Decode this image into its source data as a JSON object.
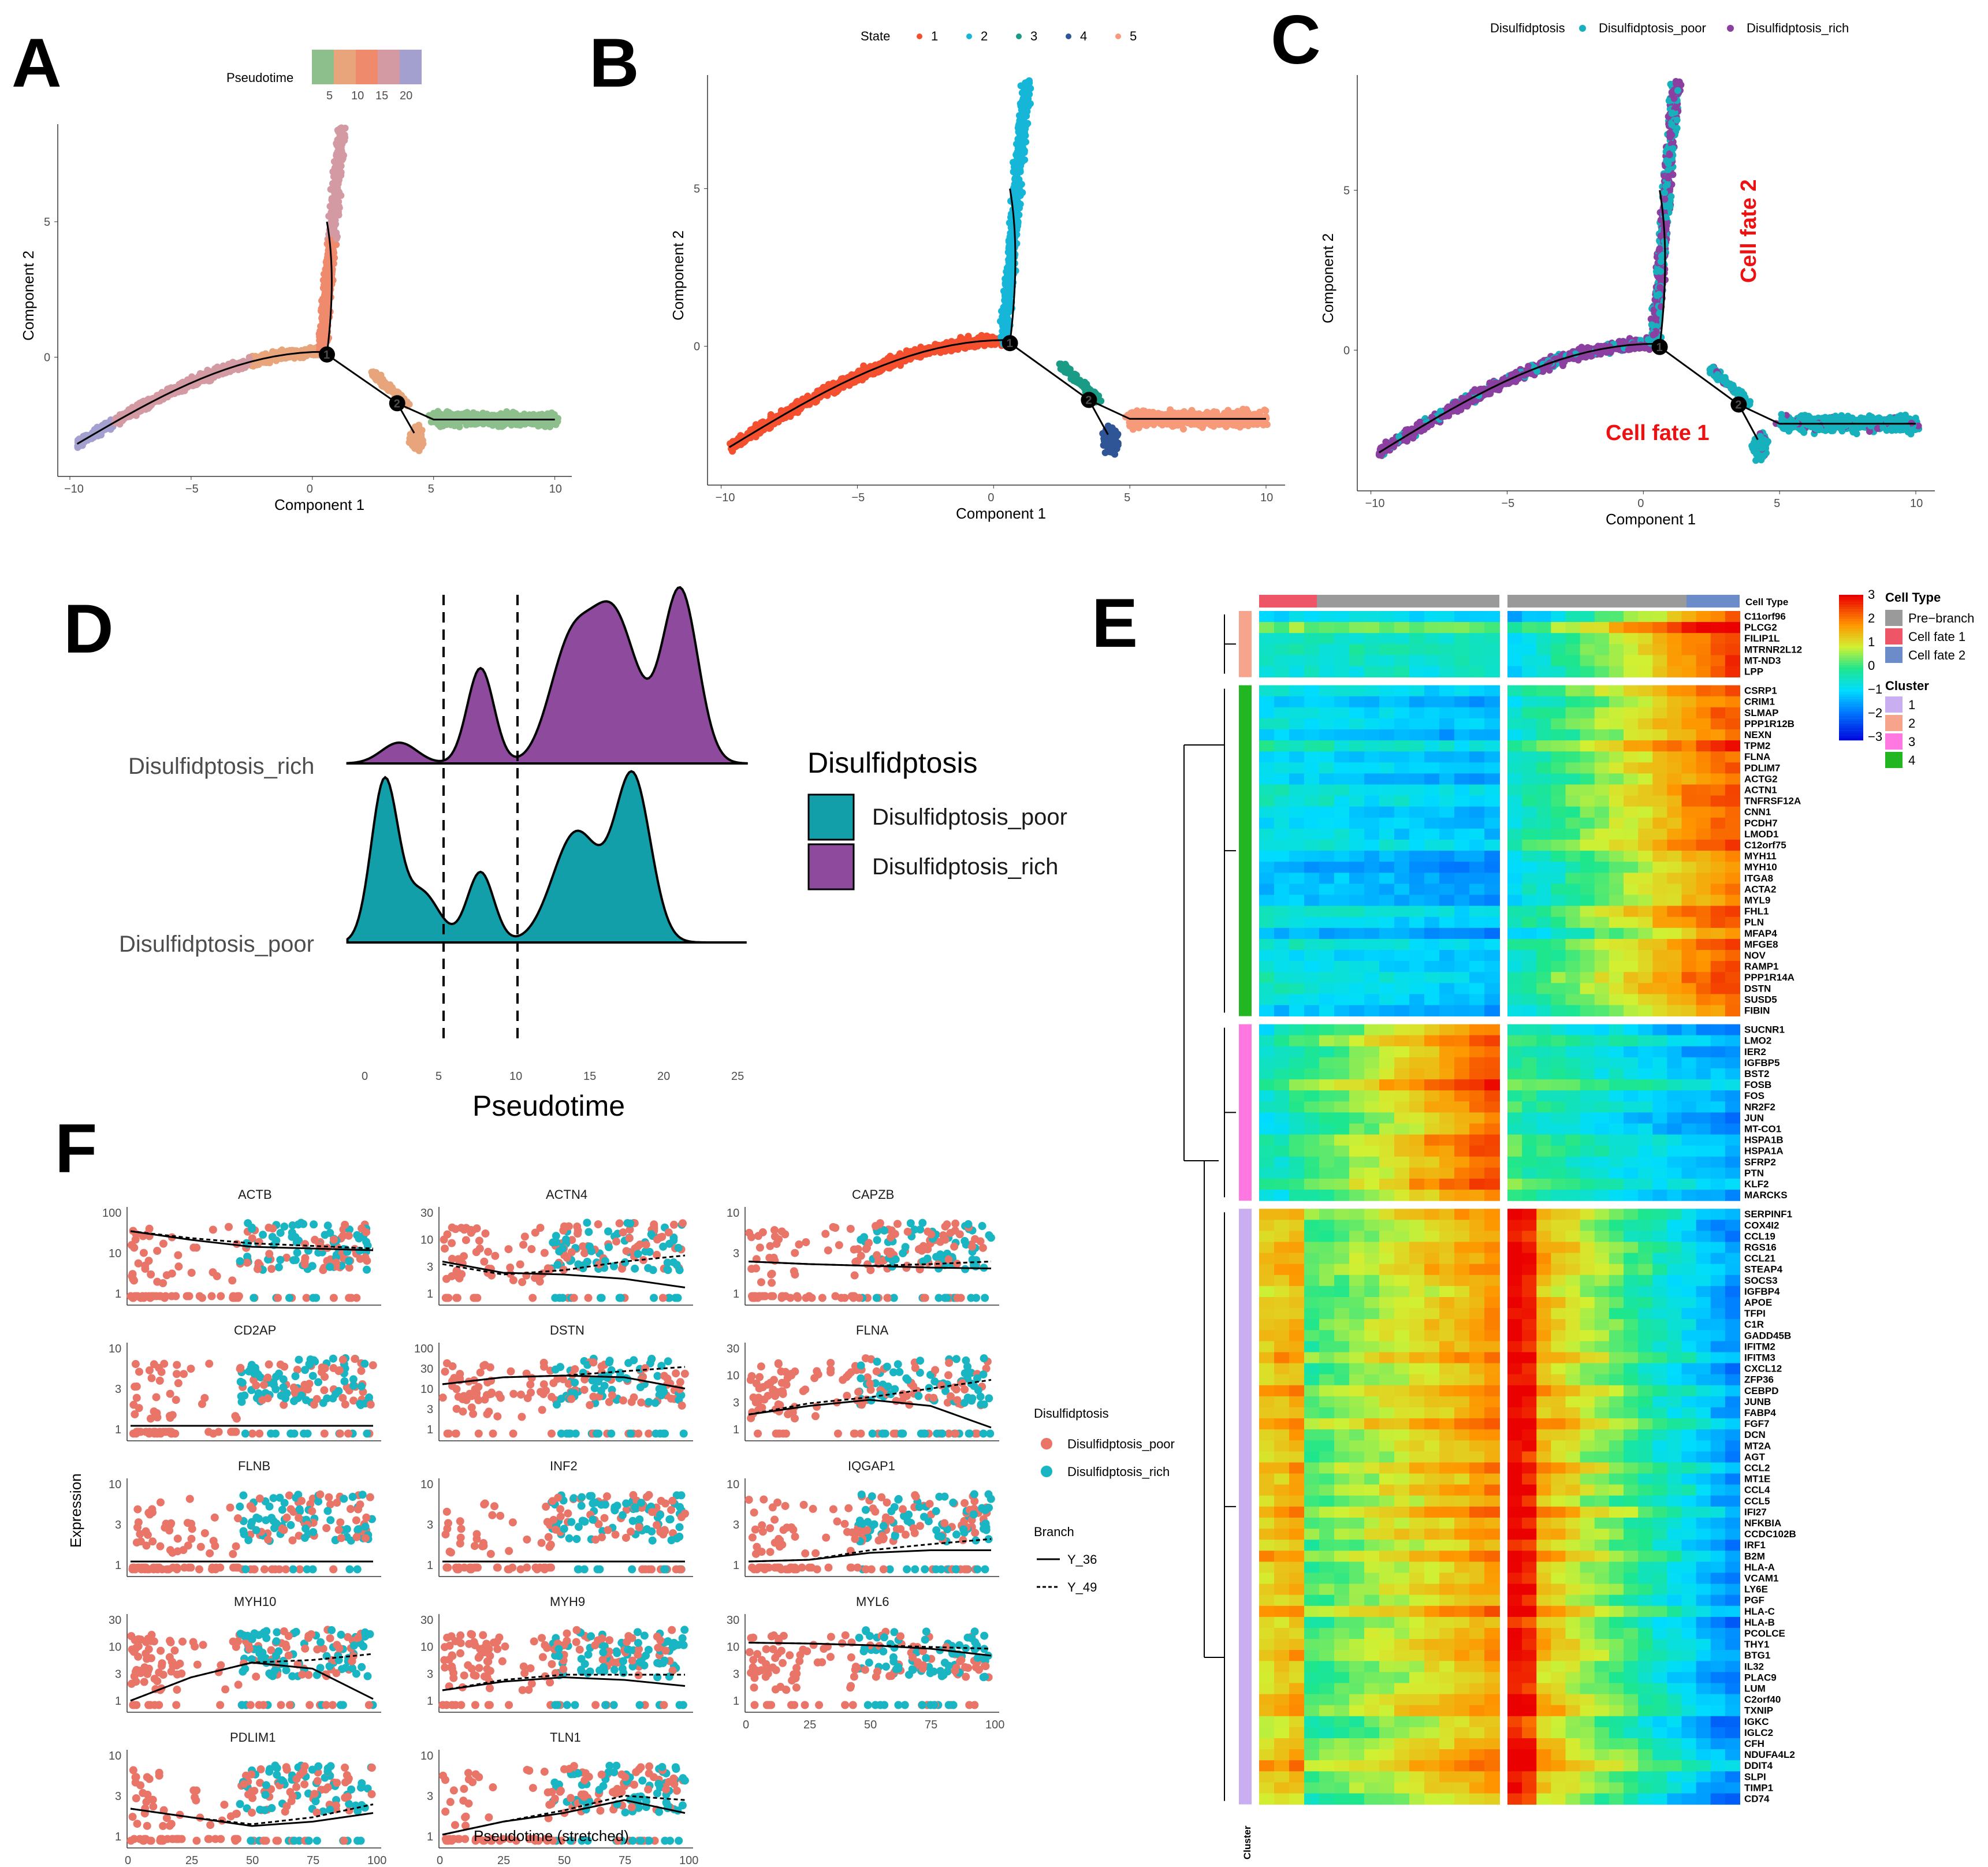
{
  "panels": {
    "a": "A",
    "b": "B",
    "c": "C",
    "d": "D",
    "e": "E",
    "f": "F"
  },
  "colors": {
    "poor": "#e97468",
    "rich": "#19b5c2",
    "ridge_rich": "#8e4a9c",
    "ridge_poor": "#139faa",
    "c_poor": "#17b0bd",
    "c_rich": "#8b3fa0"
  },
  "trajectory": {
    "xlabel": "Component 1",
    "ylabel": "Component 2",
    "xticks": [
      "−10",
      "−5",
      "0",
      "5",
      "10"
    ],
    "yticks": [
      "0",
      "5"
    ],
    "branch_points": [
      "1",
      "2"
    ]
  },
  "panel_a": {
    "legend_title": "Pseudotime",
    "legend_ticks": [
      "5",
      "10",
      "15",
      "20"
    ],
    "legend_colors": [
      "#8dbf8d",
      "#e8a47a",
      "#f08a6c",
      "#d49aa3",
      "#a3a0cf"
    ]
  },
  "panel_b": {
    "legend_title": "State",
    "states": [
      {
        "label": "1",
        "color": "#f4502f"
      },
      {
        "label": "2",
        "color": "#16b6d8"
      },
      {
        "label": "3",
        "color": "#1a9b86"
      },
      {
        "label": "4",
        "color": "#2f5597"
      },
      {
        "label": "5",
        "color": "#f79a7a"
      }
    ]
  },
  "panel_c": {
    "legend_title": "Disulfidptosis",
    "items": [
      "Disulfidptosis_poor",
      "Disulfidptosis_rich"
    ],
    "fate1": "Cell fate 1",
    "fate2": "Cell fate 2"
  },
  "chart_data": [
    {
      "type": "ridgeline",
      "id": "D",
      "xlabel": "Pseudotime",
      "xlim": [
        0,
        25
      ],
      "xticks": [
        0,
        5,
        10,
        15,
        20,
        25
      ],
      "vlines": [
        5,
        10
      ],
      "legend_title": "Disulfidptosis",
      "series": [
        {
          "name": "Disulfidptosis_rich",
          "peaks": [
            [
              2,
              0.12,
              1.2
            ],
            [
              7.5,
              0.55,
              0.9
            ],
            [
              13.5,
              0.62,
              1.4
            ],
            [
              16.5,
              0.85,
              1.6
            ],
            [
              21,
              1.0,
              1.2
            ]
          ]
        },
        {
          "name": "Disulfidptosis_poor",
          "peaks": [
            [
              1,
              0.95,
              0.9
            ],
            [
              3.5,
              0.3,
              1.2
            ],
            [
              7.5,
              0.42,
              0.9
            ],
            [
              14,
              0.66,
              1.6
            ],
            [
              17.8,
              0.98,
              1.2
            ]
          ]
        }
      ]
    },
    {
      "type": "heatmap",
      "id": "E",
      "color_scale": {
        "min": -3,
        "max": 3,
        "ticks": [
          "3",
          "2",
          "1",
          "0",
          "−1",
          "−2",
          "−3"
        ]
      },
      "annotation_title": "Cell Type",
      "cell_types": [
        {
          "label": "Pre−branch",
          "color": "#9a9a9a"
        },
        {
          "label": "Cell fate 1",
          "color": "#ee5566"
        },
        {
          "label": "Cell fate 2",
          "color": "#6b8cc9"
        }
      ],
      "cluster_title": "Cluster",
      "clusters": [
        {
          "label": "1",
          "color": "#c9aef2"
        },
        {
          "label": "2",
          "color": "#f7a48c"
        },
        {
          "label": "3",
          "color": "#ff77e0"
        },
        {
          "label": "4",
          "color": "#22b722"
        }
      ],
      "cluster_axis_label": "Cluster",
      "gene_groups": [
        {
          "cluster": "2",
          "genes": [
            "C11orf96",
            "PLCG2",
            "FILIP1L",
            "MTRNR2L12",
            "MT-ND3",
            "LPP"
          ]
        },
        {
          "cluster": "4",
          "genes": [
            "CSRP1",
            "CRIM1",
            "SLMAP",
            "PPP1R12B",
            "NEXN",
            "TPM2",
            "FLNA",
            "PDLIM7",
            "ACTG2",
            "ACTN1",
            "TNFRSF12A",
            "CNN1",
            "PCDH7",
            "LMOD1",
            "C12orf75",
            "MYH11",
            "MYH10",
            "ITGA8",
            "ACTA2",
            "MYL9",
            "FHL1",
            "PLN",
            "MFAP4",
            "MFGE8",
            "NOV",
            "RAMP1",
            "PPP1R14A",
            "DSTN",
            "SUSD5",
            "FIBIN"
          ]
        },
        {
          "cluster": "3",
          "genes": [
            "SUCNR1",
            "LMO2",
            "IER2",
            "IGFBP5",
            "BST2",
            "FOSB",
            "FOS",
            "NR2F2",
            "JUN",
            "MT-CO1",
            "HSPA1B",
            "HSPA1A",
            "SFRP2",
            "PTN",
            "KLF2",
            "MARCKS"
          ]
        },
        {
          "cluster": "1",
          "genes": [
            "SERPINF1",
            "COX4I2",
            "CCL19",
            "RGS16",
            "CCL21",
            "STEAP4",
            "SOCS3",
            "IGFBP4",
            "APOE",
            "TFPI",
            "C1R",
            "GADD45B",
            "IFITM2",
            "IFITM3",
            "CXCL12",
            "ZFP36",
            "CEBPD",
            "JUNB",
            "FABP4",
            "FGF7",
            "DCN",
            "MT2A",
            "AGT",
            "CCL2",
            "MT1E",
            "CCL4",
            "CCL5",
            "IFI27",
            "NFKBIA",
            "CCDC102B",
            "IRF1",
            "B2M",
            "HLA-A",
            "VCAM1",
            "LY6E",
            "PGF",
            "HLA-C",
            "HLA-B",
            "PCOLCE",
            "THY1",
            "BTG1",
            "IL32",
            "PLAC9",
            "LUM",
            "C2orf40",
            "TXNIP",
            "IGKC",
            "IGLC2",
            "CFH",
            "NDUFA4L2",
            "DDIT4",
            "SLPI",
            "TIMP1",
            "CD74"
          ]
        }
      ]
    },
    {
      "type": "scatter",
      "id": "F",
      "xlabel": "Pseudotime (stretched)",
      "ylabel": "Expression",
      "xticks": [
        "0",
        "25",
        "50",
        "75",
        "100"
      ],
      "legend_title": "Disulfidptosis",
      "legend_items": [
        "Disulfidptosis_poor",
        "Disulfidptosis_rich"
      ],
      "branch_title": "Branch",
      "branch_items": [
        "Y_36",
        "Y_49"
      ],
      "facets": [
        {
          "gene": "ACTB",
          "yticks": [
            "1",
            "10",
            "100"
          ],
          "solid": [
            0.8,
            0.7,
            0.62,
            0.6,
            0.58
          ],
          "dashed": [
            0.8,
            0.72,
            0.66,
            0.63,
            0.6
          ]
        },
        {
          "gene": "ACTN4",
          "yticks": [
            "1",
            "3",
            "10",
            "30"
          ],
          "solid": [
            0.45,
            0.32,
            0.3,
            0.25,
            0.15
          ],
          "dashed": [
            0.42,
            0.3,
            0.35,
            0.45,
            0.52
          ]
        },
        {
          "gene": "CAPZB",
          "yticks": [
            "1",
            "3",
            "10"
          ],
          "solid": [
            0.45,
            0.42,
            0.4,
            0.38,
            0.37
          ],
          "dashed": [
            0.45,
            0.42,
            0.4,
            0.42,
            0.45
          ]
        },
        {
          "gene": "CD2AP",
          "yticks": [
            "1",
            "3",
            "10"
          ],
          "solid": [
            0.12,
            0.12,
            0.12,
            0.12,
            0.12
          ],
          "dashed": [
            0.12,
            0.12,
            0.12,
            0.12,
            0.12
          ]
        },
        {
          "gene": "DSTN",
          "yticks": [
            "1",
            "3",
            "10",
            "30",
            "100"
          ],
          "solid": [
            0.6,
            0.68,
            0.7,
            0.68,
            0.55
          ],
          "dashed": [
            0.6,
            0.68,
            0.7,
            0.75,
            0.8
          ]
        },
        {
          "gene": "FLNA",
          "yticks": [
            "1",
            "3",
            "10",
            "30"
          ],
          "solid": [
            0.25,
            0.35,
            0.42,
            0.35,
            0.1
          ],
          "dashed": [
            0.25,
            0.38,
            0.45,
            0.55,
            0.65
          ]
        },
        {
          "gene": "FLNB",
          "yticks": [
            "1",
            "3",
            "10"
          ],
          "solid": [
            0.12,
            0.12,
            0.12,
            0.12,
            0.12
          ],
          "dashed": [
            0.12,
            0.12,
            0.12,
            0.12,
            0.12
          ]
        },
        {
          "gene": "INF2",
          "yticks": [
            "1",
            "3",
            "10"
          ],
          "solid": [
            0.12,
            0.12,
            0.12,
            0.12,
            0.12
          ],
          "dashed": [
            0.12,
            0.12,
            0.12,
            0.12,
            0.12
          ]
        },
        {
          "gene": "IQGAP1",
          "yticks": [
            "1",
            "3",
            "10"
          ],
          "solid": [
            0.12,
            0.14,
            0.22,
            0.25,
            0.25
          ],
          "dashed": [
            0.12,
            0.14,
            0.25,
            0.32,
            0.38
          ]
        },
        {
          "gene": "MYH10",
          "yticks": [
            "1",
            "3",
            "10",
            "30"
          ],
          "solid": [
            0.08,
            0.35,
            0.52,
            0.45,
            0.1
          ],
          "dashed": [
            0.08,
            0.35,
            0.52,
            0.55,
            0.62
          ]
        },
        {
          "gene": "MYH9",
          "yticks": [
            "1",
            "3",
            "10",
            "30"
          ],
          "solid": [
            0.2,
            0.3,
            0.35,
            0.32,
            0.25
          ],
          "dashed": [
            0.2,
            0.32,
            0.38,
            0.38,
            0.38
          ]
        },
        {
          "gene": "MYL6",
          "yticks": [
            "1",
            "3",
            "10",
            "30"
          ],
          "solid": [
            0.75,
            0.74,
            0.72,
            0.68,
            0.6
          ],
          "dashed": [
            0.75,
            0.74,
            0.72,
            0.7,
            0.68
          ]
        },
        {
          "gene": "PDLIM1",
          "yticks": [
            "1",
            "3",
            "10"
          ],
          "solid": [
            0.4,
            0.3,
            0.2,
            0.25,
            0.35
          ],
          "dashed": [
            0.4,
            0.3,
            0.22,
            0.3,
            0.45
          ]
        },
        {
          "gene": "TLN1",
          "yticks": [
            "1",
            "3",
            "10"
          ],
          "solid": [
            0.1,
            0.25,
            0.35,
            0.5,
            0.35
          ],
          "dashed": [
            0.1,
            0.25,
            0.38,
            0.55,
            0.5
          ]
        }
      ]
    }
  ]
}
